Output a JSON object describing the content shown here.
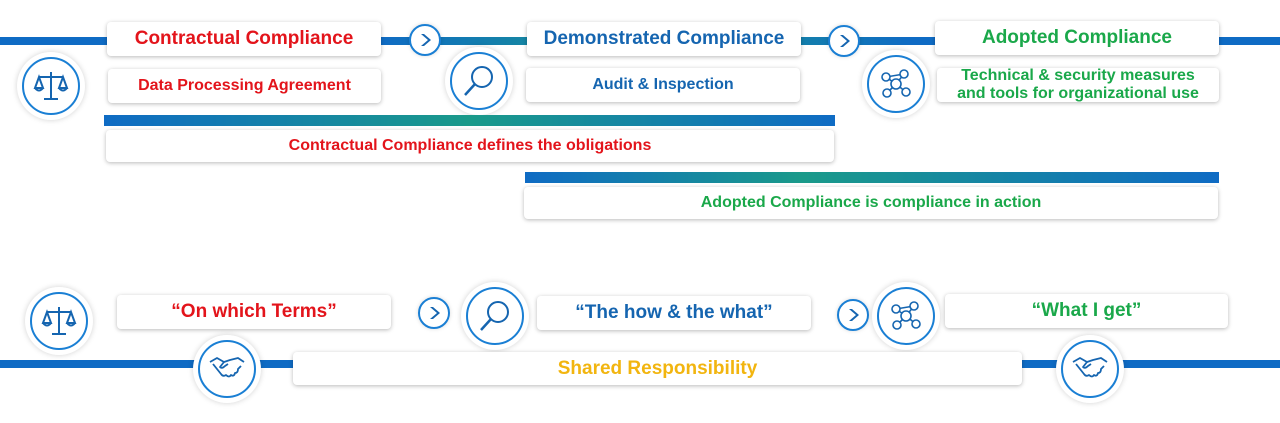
{
  "colors": {
    "red": "#e3141b",
    "blue": "#1565b0",
    "green": "#1aa84a",
    "yellow": "#f2b50f",
    "bar": "#0f6bc4"
  },
  "top": {
    "contractual": {
      "title": "Contractual Compliance",
      "subtitle": "Data Processing Agreement",
      "icon": "scales-icon"
    },
    "demonstrated": {
      "title": "Demonstrated Compliance",
      "subtitle": "Audit & Inspection",
      "icon": "magnifier-icon"
    },
    "adopted": {
      "title": "Adopted Compliance",
      "subtitle_line1": "Technical & security measures",
      "subtitle_line2": "and tools for organizational use",
      "icon": "network-icon"
    },
    "span1": "Contractual Compliance defines the obligations",
    "span2": "Adopted Compliance is compliance in action"
  },
  "bottom": {
    "terms": "“On which Terms”",
    "how": "“The how & the what”",
    "get": "“What I get”",
    "shared": "Shared Responsibility"
  }
}
